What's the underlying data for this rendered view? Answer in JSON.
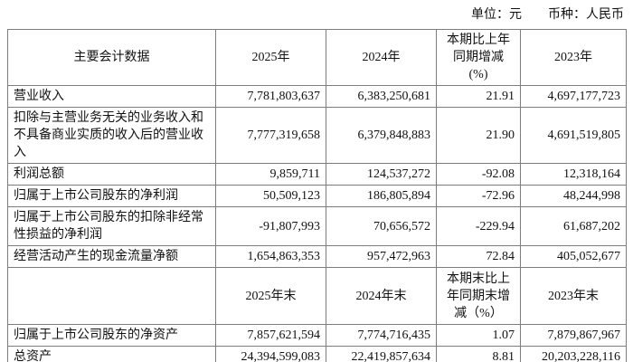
{
  "meta": {
    "unit": "单位：元",
    "currency": "币种：人民币"
  },
  "table": {
    "header_row_1": [
      "主要会计数据",
      "2025年",
      "2024年",
      "本期比上年\n同期增减\n(%)",
      "2023年"
    ],
    "rows_period": [
      {
        "label": "营业收入",
        "values": [
          "7,781,803,637",
          "6,383,250,681",
          "21.91",
          "4,697,177,723"
        ]
      },
      {
        "label": "扣除与主营业务无关的业务收入和不具备商业实质的收入后的营业收入",
        "values": [
          "7,777,319,658",
          "6,379,848,883",
          "21.90",
          "4,691,519,805"
        ]
      },
      {
        "label": "利润总额",
        "values": [
          "9,859,711",
          "124,537,272",
          "-92.08",
          "12,318,164"
        ]
      },
      {
        "label": "归属于上市公司股东的净利润",
        "values": [
          "50,509,123",
          "186,805,894",
          "-72.96",
          "48,244,998"
        ]
      },
      {
        "label": "归属于上市公司股东的扣除非经常性损益的净利润",
        "values": [
          "-91,807,993",
          "70,656,572",
          "-229.94",
          "61,687,202"
        ]
      },
      {
        "label": "经营活动产生的现金流量净额",
        "values": [
          "1,654,863,353",
          "957,472,963",
          "72.84",
          "405,052,677"
        ]
      }
    ],
    "header_row_2": [
      "",
      "2025年末",
      "2024年末",
      "本期末比上\n年同期末增\n减（%）",
      "2023年末"
    ],
    "rows_eop": [
      {
        "label": "归属于上市公司股东的净资产",
        "values": [
          "7,857,621,594",
          "7,774,716,435",
          "1.07",
          "7,879,867,967"
        ]
      },
      {
        "label": "总资产",
        "values": [
          "24,394,599,083",
          "22,419,857,634",
          "8.81",
          "20,203,228,116"
        ]
      }
    ]
  }
}
